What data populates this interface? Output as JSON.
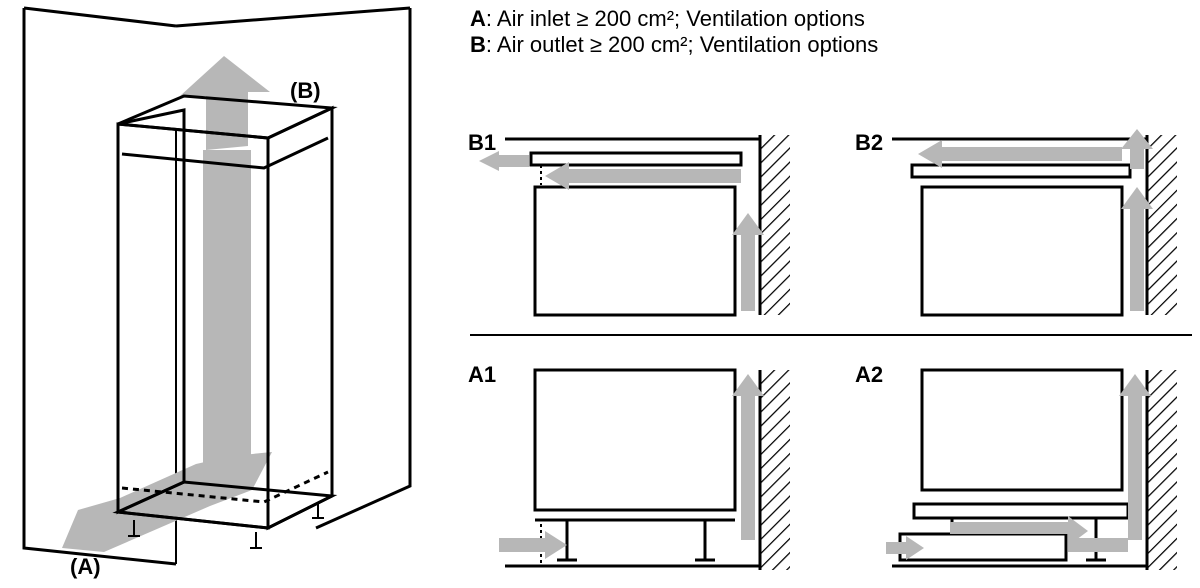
{
  "colors": {
    "stroke": "#000000",
    "arrow_fill": "#b7b7b7",
    "hatch": "#000000",
    "bg": "#ffffff"
  },
  "stroke_width": 3,
  "thin_stroke_width": 2,
  "hatch_spacing": 10,
  "legend": {
    "a_label": "A",
    "a_text": ": Air inlet ≥ 200 cm²; Ventilation options",
    "b_label": "B",
    "b_text": ": Air outlet ≥ 200 cm²; Ventilation options"
  },
  "callouts": {
    "a": "(A)",
    "b": "(B)"
  },
  "panels": {
    "b1": "B1",
    "b2": "B2",
    "a1": "A1",
    "a2": "A2"
  },
  "feet": {
    "height": 28,
    "width": 10,
    "foot_w": 22
  }
}
